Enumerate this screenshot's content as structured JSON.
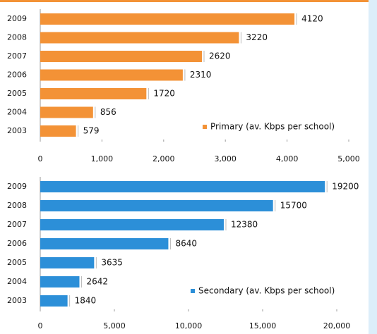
{
  "chart_data": [
    {
      "type": "bar",
      "orientation": "horizontal",
      "categories": [
        "2009",
        "2008",
        "2007",
        "2006",
        "2005",
        "2004",
        "2003"
      ],
      "series": [
        {
          "name": "Primary (av. Kbps per school)",
          "color": "#f39236",
          "values": [
            4120,
            3220,
            2620,
            2310,
            1720,
            856,
            579
          ]
        }
      ],
      "xlim": [
        0,
        5000
      ],
      "xticks": [
        0,
        {
          "value": 1000,
          "label": "1,000"
        },
        {
          "value": 2000,
          "label": "2,000"
        },
        {
          "value": 3000,
          "label": "3,000"
        },
        {
          "value": 4000,
          "label": "4,000"
        },
        {
          "value": 5000,
          "label": "5,000"
        }
      ]
    },
    {
      "type": "bar",
      "orientation": "horizontal",
      "categories": [
        "2009",
        "2008",
        "2007",
        "2006",
        "2005",
        "2004",
        "2003"
      ],
      "series": [
        {
          "name": "Secondary (av. Kbps per school)",
          "color": "#2c8fd8",
          "values": [
            19200,
            15700,
            12380,
            8640,
            3635,
            2642,
            1840
          ]
        }
      ],
      "xlim": [
        0,
        20000
      ],
      "xticks": [
        0,
        {
          "value": 5000,
          "label": "5,000"
        },
        {
          "value": 10000,
          "label": "10,000"
        },
        {
          "value": 15000,
          "label": "15,000"
        },
        {
          "value": 20000,
          "label": "20,000"
        }
      ]
    }
  ]
}
